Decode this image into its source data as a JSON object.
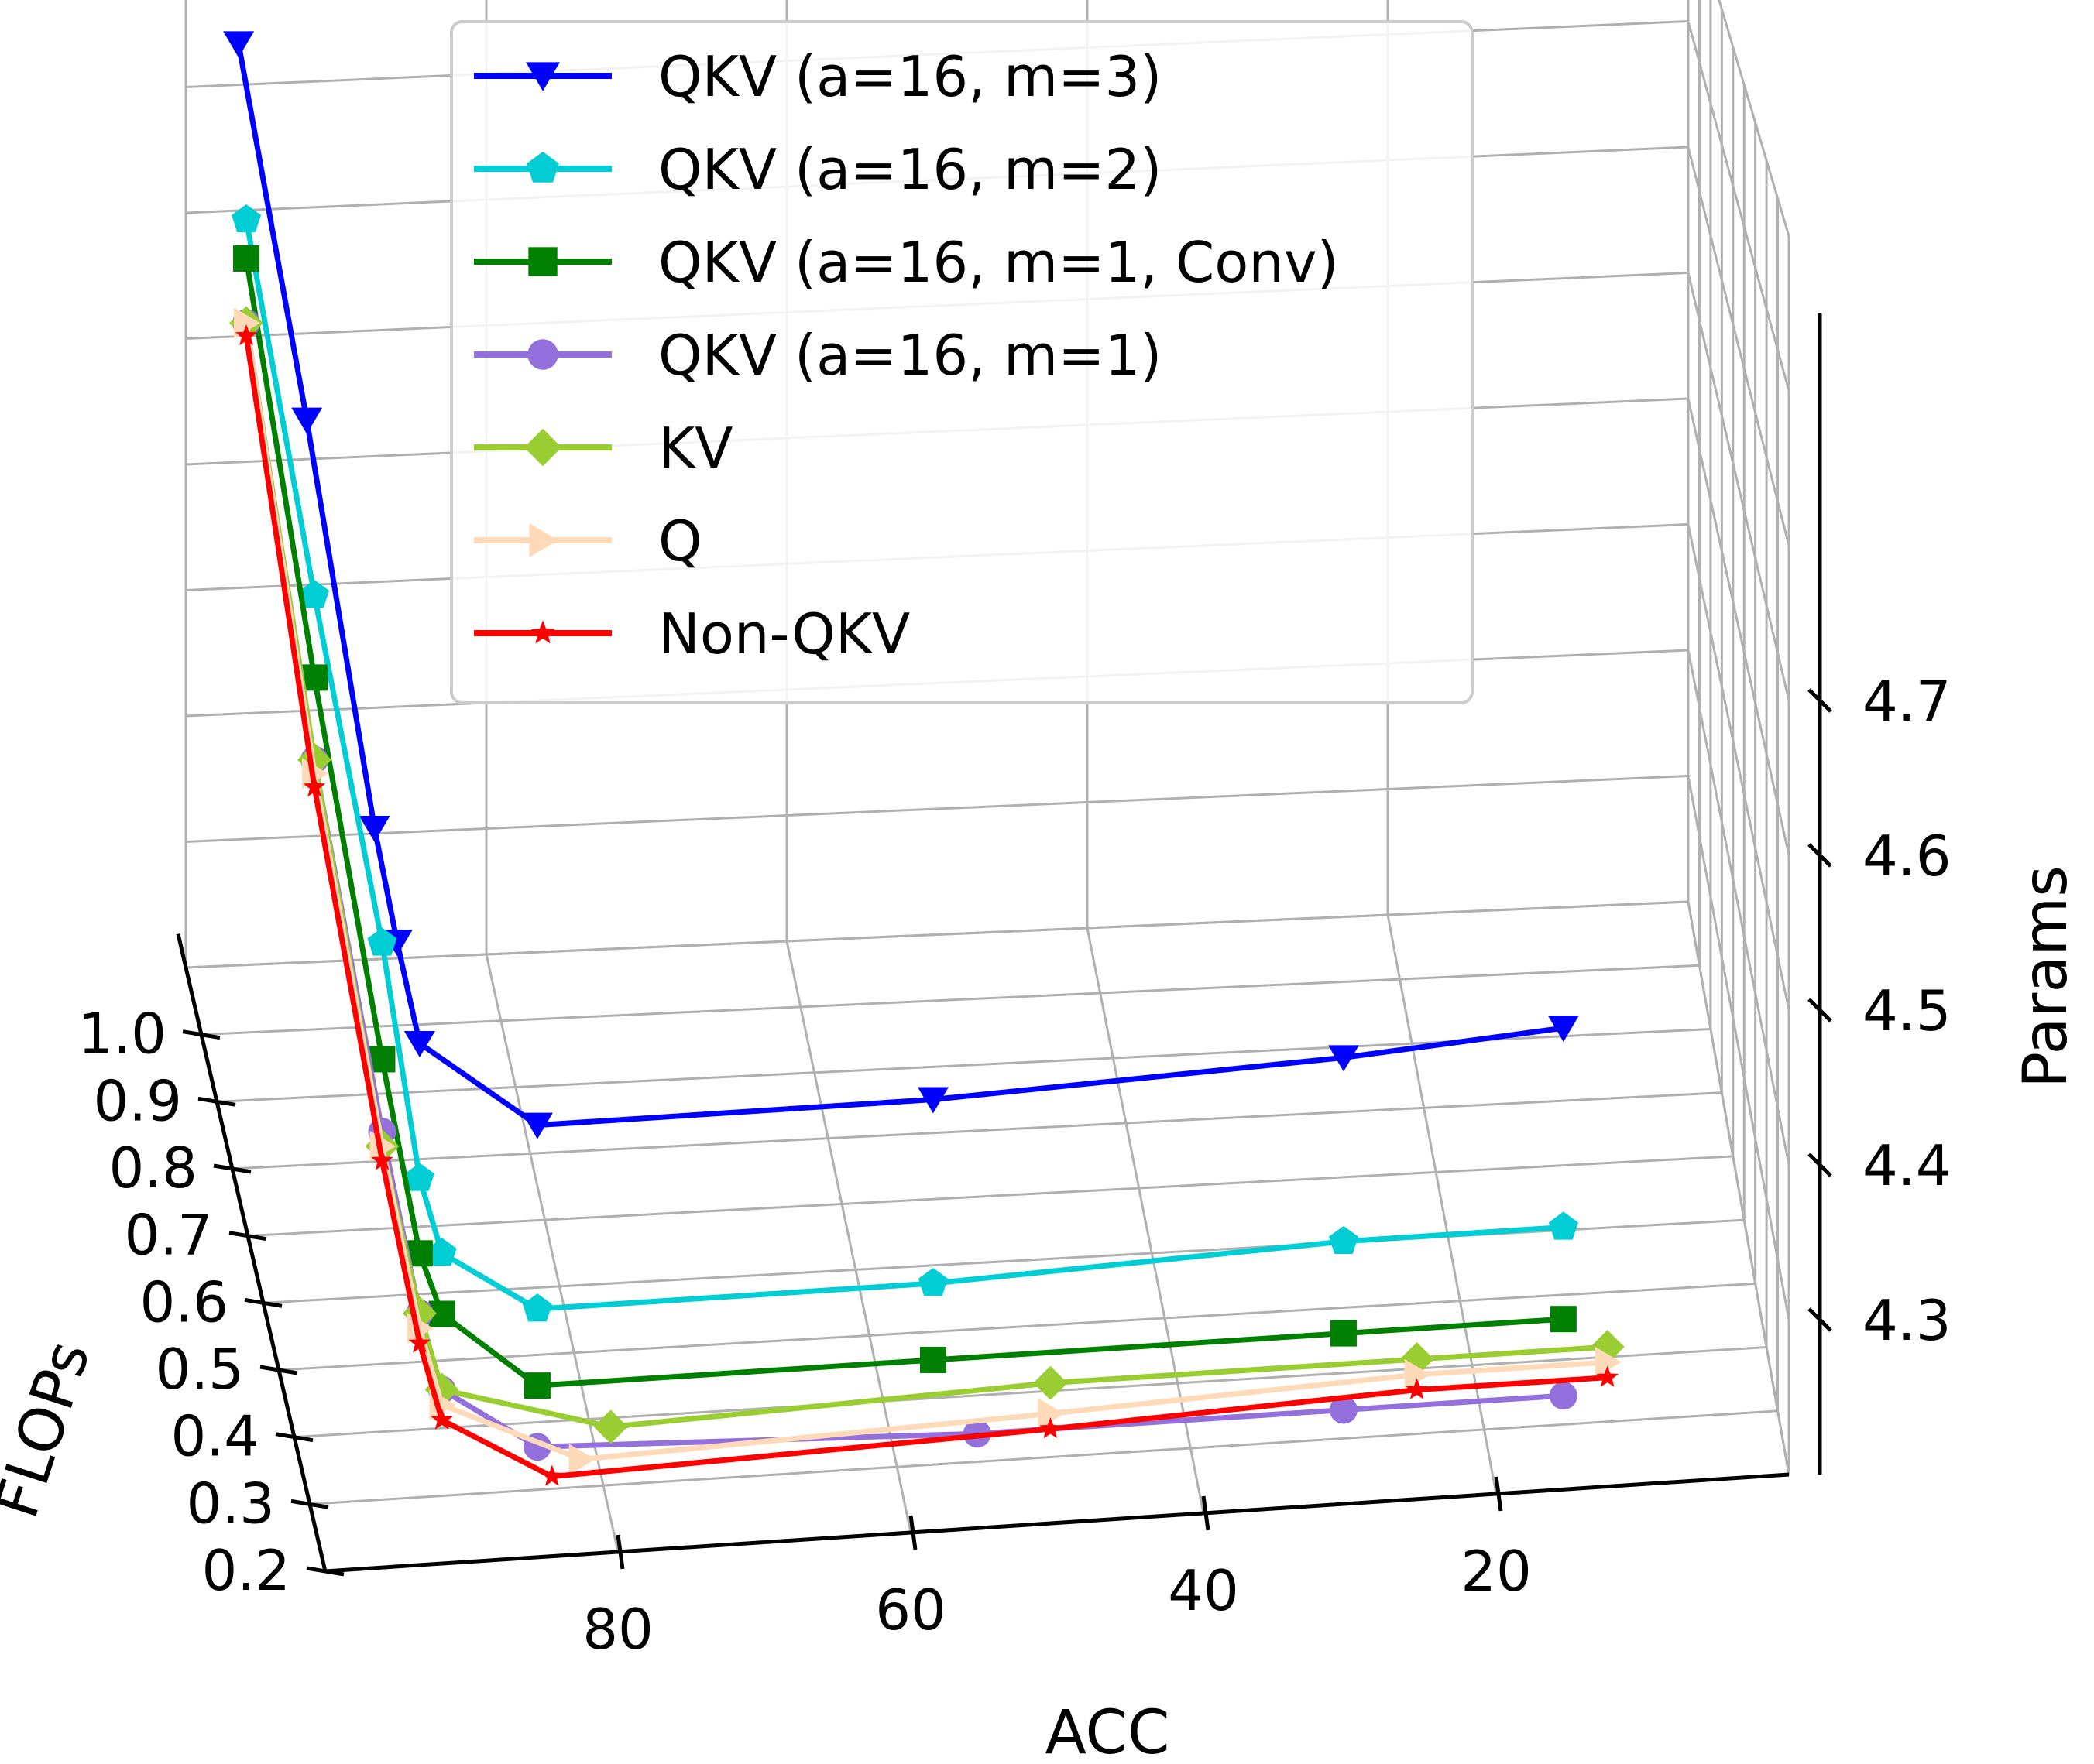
{
  "chart_data": {
    "type": "line",
    "projection": "3d",
    "title": "",
    "xlabel": "ACC",
    "ylabel": "FLOPs",
    "zlabel": "Params",
    "x_ticks": [
      "80",
      "60",
      "40",
      "20"
    ],
    "y_ticks": [
      "0.2",
      "0.3",
      "0.4",
      "0.5",
      "0.6",
      "0.7",
      "0.8",
      "0.9",
      "1.0"
    ],
    "z_ticks": [
      "4.3",
      "4.4",
      "4.5",
      "4.6",
      "4.7"
    ],
    "legend_position": "top-center",
    "series": [
      {
        "name": "QKV (a=16, m=3)",
        "color": "#0000ff",
        "marker": "triangle-down",
        "points": [
          {
            "acc": 97,
            "flops": 1.05,
            "params": 4.95
          },
          {
            "acc": 95,
            "flops": 0.8,
            "params": 4.75
          },
          {
            "acc": 93,
            "flops": 0.55,
            "params": 4.55
          },
          {
            "acc": 92.5,
            "flops": 0.45,
            "params": 4.51
          },
          {
            "acc": 92,
            "flops": 0.35,
            "params": 4.48
          },
          {
            "acc": 85,
            "flops": 0.25,
            "params": 4.46
          },
          {
            "acc": 58,
            "flops": 0.25,
            "params": 4.46
          },
          {
            "acc": 30,
            "flops": 0.25,
            "params": 4.47
          },
          {
            "acc": 15,
            "flops": 0.25,
            "params": 4.48
          }
        ]
      },
      {
        "name": "QKV (a=16, m=2)",
        "color": "#00cdd4",
        "marker": "pentagon",
        "points": [
          {
            "acc": 97,
            "flops": 1.0,
            "params": 4.83
          },
          {
            "acc": 95,
            "flops": 0.75,
            "params": 4.64
          },
          {
            "acc": 93,
            "flops": 0.5,
            "params": 4.49
          },
          {
            "acc": 92,
            "flops": 0.35,
            "params": 4.39
          },
          {
            "acc": 91,
            "flops": 0.3,
            "params": 4.36
          },
          {
            "acc": 85,
            "flops": 0.25,
            "params": 4.34
          },
          {
            "acc": 58,
            "flops": 0.25,
            "params": 4.34
          },
          {
            "acc": 30,
            "flops": 0.25,
            "params": 4.35
          },
          {
            "acc": 15,
            "flops": 0.25,
            "params": 4.35
          }
        ]
      },
      {
        "name": "QKV (a=16, m=1, Conv)",
        "color": "#008000",
        "marker": "square",
        "points": [
          {
            "acc": 97,
            "flops": 1.0,
            "params": 4.8
          },
          {
            "acc": 95,
            "flops": 0.75,
            "params": 4.58
          },
          {
            "acc": 93,
            "flops": 0.5,
            "params": 4.41
          },
          {
            "acc": 92,
            "flops": 0.35,
            "params": 4.34
          },
          {
            "acc": 91,
            "flops": 0.3,
            "params": 4.32
          },
          {
            "acc": 85,
            "flops": 0.25,
            "params": 4.29
          },
          {
            "acc": 58,
            "flops": 0.25,
            "params": 4.29
          },
          {
            "acc": 30,
            "flops": 0.25,
            "params": 4.29
          },
          {
            "acc": 15,
            "flops": 0.25,
            "params": 4.29
          }
        ]
      },
      {
        "name": "QKV (a=16, m=1)",
        "color": "#9370db",
        "marker": "circle",
        "points": [
          {
            "acc": 97,
            "flops": 1.0,
            "params": 4.75
          },
          {
            "acc": 95,
            "flops": 0.75,
            "params": 4.52
          },
          {
            "acc": 93,
            "flops": 0.5,
            "params": 4.36
          },
          {
            "acc": 92,
            "flops": 0.35,
            "params": 4.3
          },
          {
            "acc": 91,
            "flops": 0.3,
            "params": 4.27
          },
          {
            "acc": 85,
            "flops": 0.25,
            "params": 4.25
          },
          {
            "acc": 55,
            "flops": 0.25,
            "params": 4.24
          },
          {
            "acc": 30,
            "flops": 0.25,
            "params": 4.24
          },
          {
            "acc": 15,
            "flops": 0.25,
            "params": 4.24
          }
        ]
      },
      {
        "name": "KV",
        "color": "#9acd32",
        "marker": "diamond",
        "points": [
          {
            "acc": 97,
            "flops": 1.0,
            "params": 4.75
          },
          {
            "acc": 95,
            "flops": 0.75,
            "params": 4.52
          },
          {
            "acc": 93,
            "flops": 0.5,
            "params": 4.35
          },
          {
            "acc": 92,
            "flops": 0.35,
            "params": 4.3
          },
          {
            "acc": 91,
            "flops": 0.3,
            "params": 4.27
          },
          {
            "acc": 80,
            "flops": 0.25,
            "params": 4.26
          },
          {
            "acc": 50,
            "flops": 0.25,
            "params": 4.27
          },
          {
            "acc": 25,
            "flops": 0.25,
            "params": 4.27
          },
          {
            "acc": 12,
            "flops": 0.25,
            "params": 4.27
          }
        ]
      },
      {
        "name": "Q",
        "color": "#ffdab9",
        "marker": "triangle-right",
        "points": [
          {
            "acc": 97,
            "flops": 1.0,
            "params": 4.75
          },
          {
            "acc": 95,
            "flops": 0.75,
            "params": 4.51
          },
          {
            "acc": 93,
            "flops": 0.5,
            "params": 4.35
          },
          {
            "acc": 92,
            "flops": 0.35,
            "params": 4.29
          },
          {
            "acc": 91,
            "flops": 0.3,
            "params": 4.26
          },
          {
            "acc": 82,
            "flops": 0.25,
            "params": 4.24
          },
          {
            "acc": 50,
            "flops": 0.25,
            "params": 4.25
          },
          {
            "acc": 25,
            "flops": 0.25,
            "params": 4.26
          },
          {
            "acc": 12,
            "flops": 0.25,
            "params": 4.26
          }
        ]
      },
      {
        "name": "Non-QKV",
        "color": "#ff0000",
        "marker": "star",
        "points": [
          {
            "acc": 97,
            "flops": 1.0,
            "params": 4.74
          },
          {
            "acc": 95,
            "flops": 0.75,
            "params": 4.5
          },
          {
            "acc": 93,
            "flops": 0.5,
            "params": 4.34
          },
          {
            "acc": 92,
            "flops": 0.35,
            "params": 4.28
          },
          {
            "acc": 91,
            "flops": 0.3,
            "params": 4.25
          },
          {
            "acc": 84,
            "flops": 0.25,
            "params": 4.23
          },
          {
            "acc": 50,
            "flops": 0.25,
            "params": 4.24
          },
          {
            "acc": 25,
            "flops": 0.25,
            "params": 4.25
          },
          {
            "acc": 12,
            "flops": 0.25,
            "params": 4.25
          }
        ]
      }
    ]
  }
}
